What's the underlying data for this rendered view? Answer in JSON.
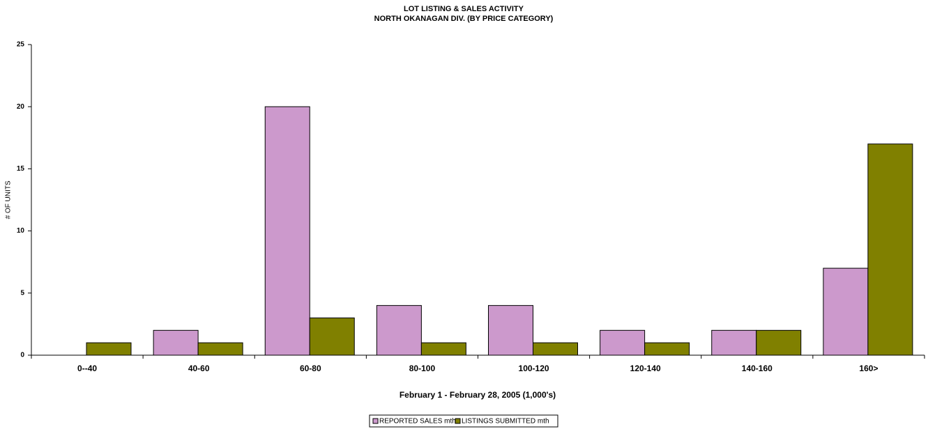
{
  "chart_data": {
    "type": "bar",
    "title": "LOT LISTING & SALES ACTIVITY",
    "subtitle": "NORTH OKANAGAN DIV. (BY PRICE CATEGORY)",
    "y_label": "# OF UNITS",
    "x_label": "February 1 - February 28, 2005 (1,000's)",
    "categories": [
      "0--40",
      "40-60",
      "60-80",
      "80-100",
      "100-120",
      "120-140",
      "140-160",
      "160>"
    ],
    "series": [
      {
        "name": "REPORTED SALES mth",
        "color": "#cc99cc",
        "values": [
          0,
          2,
          20,
          4,
          4,
          2,
          2,
          7
        ]
      },
      {
        "name": "LISTINGS SUBMITTED mth",
        "color": "#808000",
        "values": [
          1,
          1,
          3,
          1,
          1,
          1,
          2,
          17
        ]
      }
    ],
    "ylim": [
      0,
      25
    ],
    "yticks": [
      0,
      5,
      10,
      15,
      20,
      25
    ],
    "grid": false,
    "legend": "bottom"
  }
}
